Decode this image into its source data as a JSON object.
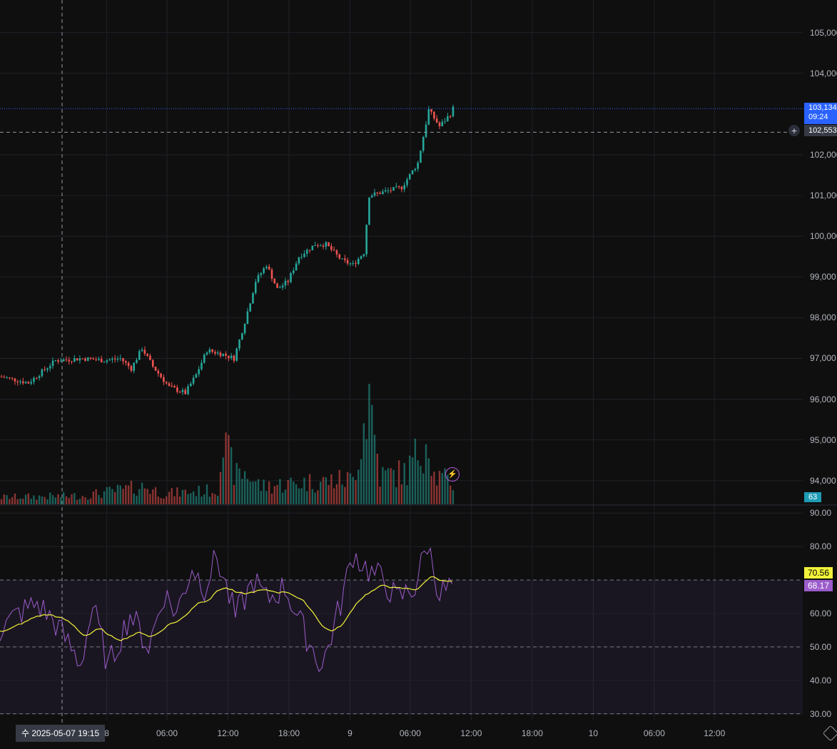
{
  "price_axis": [
    "105,000",
    "104,000",
    "103,134",
    "102,553",
    "102,000",
    "101,000",
    "100,000",
    "99,000",
    "98,000",
    "97,000",
    "96,000",
    "95,000",
    "94,000"
  ],
  "price_ticks": [
    {
      "label": "105,000",
      "value": 105000
    },
    {
      "label": "104,000",
      "value": 104000
    },
    {
      "label": "102,000",
      "value": 102000
    },
    {
      "label": "101,000",
      "value": 101000
    },
    {
      "label": "100,000",
      "value": 100000
    },
    {
      "label": "99,000",
      "value": 99000
    },
    {
      "label": "98,000",
      "value": 98000
    },
    {
      "label": "97,000",
      "value": 97000
    },
    {
      "label": "96,000",
      "value": 96000
    },
    {
      "label": "95,000",
      "value": 95000
    },
    {
      "label": "94,000",
      "value": 94000
    }
  ],
  "rsi_ticks": [
    {
      "label": "90.00",
      "value": 90
    },
    {
      "label": "80.00",
      "value": 80
    },
    {
      "label": "60.00",
      "value": 60
    },
    {
      "label": "50.00",
      "value": 50
    },
    {
      "label": "40.00",
      "value": 40
    },
    {
      "label": "30.00",
      "value": 30
    }
  ],
  "time_ticks": [
    {
      "label": "8",
      "pos": 0.133
    },
    {
      "label": "06:00",
      "pos": 0.208
    },
    {
      "label": "12:00",
      "pos": 0.284
    },
    {
      "label": "18:00",
      "pos": 0.36
    },
    {
      "label": "9",
      "pos": 0.436
    },
    {
      "label": "06:00",
      "pos": 0.511
    },
    {
      "label": "12:00",
      "pos": 0.587
    },
    {
      "label": "18:00",
      "pos": 0.663
    },
    {
      "label": "10",
      "pos": 0.739
    },
    {
      "label": "06:00",
      "pos": 0.815
    },
    {
      "label": "12:00",
      "pos": 0.89
    }
  ],
  "last_price": {
    "price": "103,134",
    "countdown": "09:24",
    "value": 103134
  },
  "crosshair": {
    "price": "102,553",
    "value": 102553,
    "time": "수 2025-05-07   19:15"
  },
  "volume_label": "63",
  "rsi": {
    "value_label": "68.17",
    "signal_label": "70.56",
    "value": 68.17,
    "signal": 70.56
  },
  "colors": {
    "up": "#26a69a",
    "down": "#ef5350",
    "rsi": "#9c5ccb",
    "signal": "#f2f23b",
    "background": "#0f0f0f",
    "grid": "#1f2127"
  },
  "icons": {
    "add": "plus-circle-icon",
    "alert": "lightning-icon",
    "settings": "settings-icon"
  },
  "chart_data": {
    "type": "candlestick",
    "y_range": [
      93400,
      105800
    ],
    "rsi_range": [
      28,
      92
    ],
    "rsi_levels": [
      70,
      50,
      30
    ],
    "price_anchors": [
      [
        0,
        96550
      ],
      [
        10,
        96400
      ],
      [
        20,
        96950
      ],
      [
        30,
        97000
      ],
      [
        38,
        96950
      ],
      [
        44,
        97000
      ],
      [
        48,
        96750
      ],
      [
        52,
        97250
      ],
      [
        56,
        96800
      ],
      [
        62,
        96300
      ],
      [
        68,
        96150
      ],
      [
        72,
        96600
      ],
      [
        76,
        97200
      ],
      [
        82,
        97100
      ],
      [
        86,
        97000
      ],
      [
        90,
        97900
      ],
      [
        94,
        98900
      ],
      [
        98,
        99300
      ],
      [
        102,
        98700
      ],
      [
        106,
        98900
      ],
      [
        110,
        99500
      ],
      [
        116,
        99800
      ],
      [
        120,
        99800
      ],
      [
        126,
        99400
      ],
      [
        130,
        99300
      ],
      [
        134,
        99600
      ],
      [
        136,
        101000
      ],
      [
        142,
        101100
      ],
      [
        148,
        101200
      ],
      [
        154,
        101800
      ],
      [
        158,
        103100
      ],
      [
        162,
        102700
      ],
      [
        166,
        103000
      ],
      [
        167,
        103134
      ]
    ],
    "volume_anchors": [
      [
        0,
        10
      ],
      [
        30,
        12
      ],
      [
        53,
        25
      ],
      [
        60,
        15
      ],
      [
        80,
        20
      ],
      [
        81,
        90
      ],
      [
        87,
        40
      ],
      [
        90,
        45
      ],
      [
        96,
        25
      ],
      [
        110,
        30
      ],
      [
        130,
        35
      ],
      [
        136,
        155
      ],
      [
        140,
        40
      ],
      [
        150,
        45
      ],
      [
        158,
        100
      ],
      [
        160,
        40
      ],
      [
        167,
        30
      ]
    ],
    "rsi_anchors": [
      [
        0,
        55
      ],
      [
        6,
        60
      ],
      [
        12,
        63
      ],
      [
        18,
        57
      ],
      [
        26,
        45
      ],
      [
        30,
        62
      ],
      [
        35,
        44
      ],
      [
        42,
        60
      ],
      [
        48,
        50
      ],
      [
        53,
        66
      ],
      [
        57,
        60
      ],
      [
        62,
        74
      ],
      [
        66,
        68
      ],
      [
        70,
        77
      ],
      [
        76,
        59
      ],
      [
        82,
        70
      ],
      [
        86,
        64
      ],
      [
        92,
        68
      ],
      [
        98,
        55
      ],
      [
        104,
        44
      ],
      [
        110,
        63
      ],
      [
        114,
        78
      ],
      [
        120,
        72
      ],
      [
        124,
        70
      ],
      [
        128,
        64
      ],
      [
        134,
        68
      ],
      [
        138,
        81
      ],
      [
        142,
        66
      ],
      [
        146,
        68.17
      ]
    ]
  }
}
